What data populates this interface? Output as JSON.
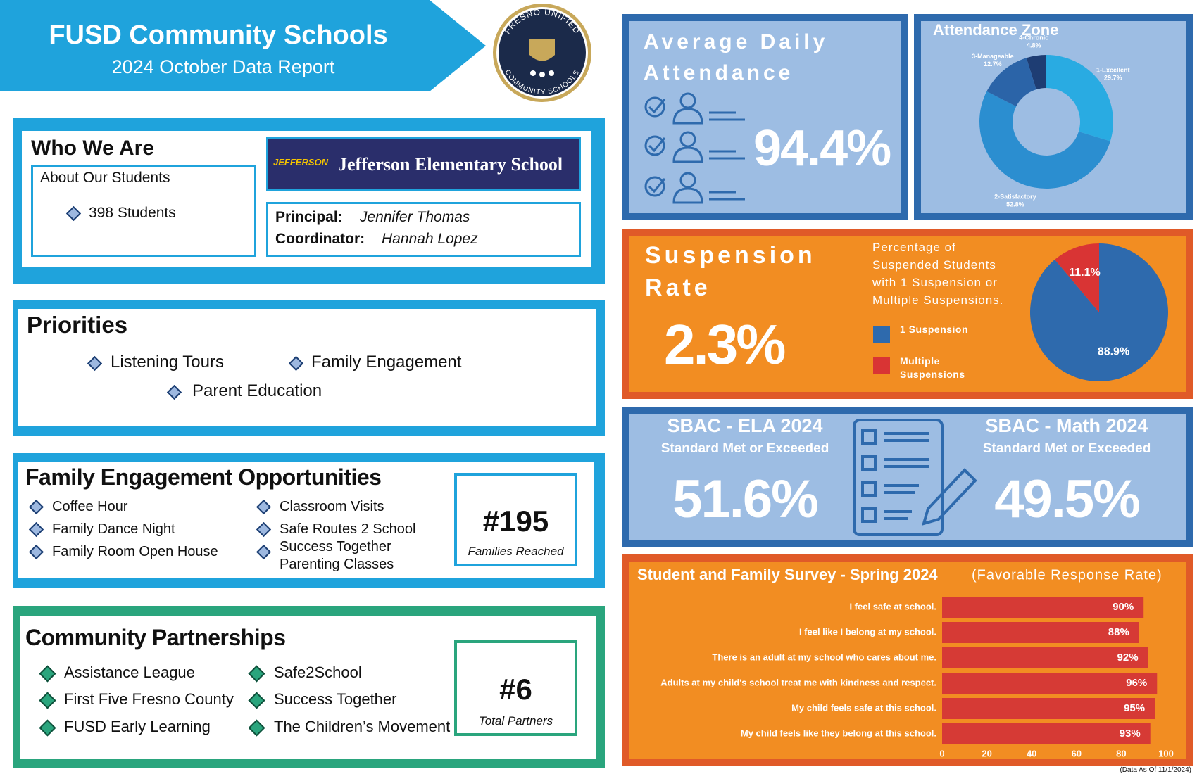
{
  "header": {
    "title": "FUSD Community Schools",
    "subtitle": "2024 October Data Report",
    "logo_top": "FRESNO UNIFIED",
    "logo_bottom": "COMMUNITY SCHOOLS"
  },
  "who_we_are": {
    "title": "Who We Are",
    "about_title": "About Our Students",
    "students": "398 Students",
    "school_logo_text": "JEFFERSON",
    "school": "Jefferson Elementary School",
    "principal_label": "Principal:",
    "principal": "Jennifer Thomas",
    "coordinator_label": "Coordinator:",
    "coordinator": "Hannah Lopez"
  },
  "priorities": {
    "title": "Priorities",
    "items": [
      "Listening Tours",
      "Family Engagement",
      "Parent Education"
    ]
  },
  "family_engagement": {
    "title": "Family Engagement Opportunities",
    "items": [
      "Coffee Hour",
      "Family Dance Night",
      "Family Room Open House",
      "Classroom Visits",
      "Safe Routes 2 School",
      "Success Together Parenting Classes"
    ],
    "count": "#195",
    "count_label": "Families Reached"
  },
  "partnerships": {
    "title": "Community Partnerships",
    "items": [
      "Assistance League",
      "First Five Fresno County",
      "FUSD Early Learning",
      "Safe2School",
      "Success Together",
      "The Children’s Movement"
    ],
    "count": "#6",
    "count_label": "Total Partners"
  },
  "attendance": {
    "title": "Average Daily Attendance",
    "value": "94.4%"
  },
  "suspension": {
    "title": "Suspension Rate",
    "value": "2.3%",
    "description": "Percentage of Suspended Students with 1 Suspension or Multiple Suspensions."
  },
  "sbac": {
    "ela_title": "SBAC - ELA 2024",
    "ela_subtitle": "Standard Met or Exceeded",
    "ela_value": "51.6%",
    "math_title": "SBAC - Math 2024",
    "math_subtitle": "Standard Met or Exceeded",
    "math_value": "49.5%"
  },
  "footnote": "(Data As Of 11/1/2024)",
  "chart_data": [
    {
      "type": "donut",
      "title": "Attendance Zone",
      "categories": [
        "1-Excellent",
        "2-Satisfactory",
        "3-Manageable",
        "4-Chronic"
      ],
      "values": [
        29.7,
        52.8,
        12.7,
        4.8
      ],
      "value_labels": [
        "29.7%",
        "52.8%",
        "12.7%",
        "4.8%"
      ],
      "colors": [
        "#29abe2",
        "#2b8ed0",
        "#2b64a8",
        "#1e3d73"
      ]
    },
    {
      "type": "pie",
      "categories": [
        "1 Suspension",
        "Multiple Suspensions"
      ],
      "values": [
        88.9,
        11.1
      ],
      "value_labels": [
        "88.9%",
        "11.1%"
      ],
      "colors": [
        "#2e6aad",
        "#d93434"
      ]
    },
    {
      "type": "bar",
      "orientation": "horizontal",
      "title": "Student and Family Survey - Spring 2024",
      "subtitle": "(Favorable Response Rate)",
      "categories": [
        "I feel safe at school.",
        "I feel like I belong at my school.",
        "There is an adult at my school who cares about me.",
        "Adults at my child's school treat me with kindness and respect.",
        "My child feels safe at this school.",
        "My child feels like they belong at this school."
      ],
      "values": [
        90,
        88,
        92,
        96,
        95,
        93
      ],
      "value_labels": [
        "90%",
        "88%",
        "92%",
        "96%",
        "95%",
        "93%"
      ],
      "color": "#d63a35",
      "xlim": [
        0,
        100
      ],
      "xticks": [
        0,
        20,
        40,
        60,
        80,
        100
      ],
      "grid": false
    }
  ]
}
